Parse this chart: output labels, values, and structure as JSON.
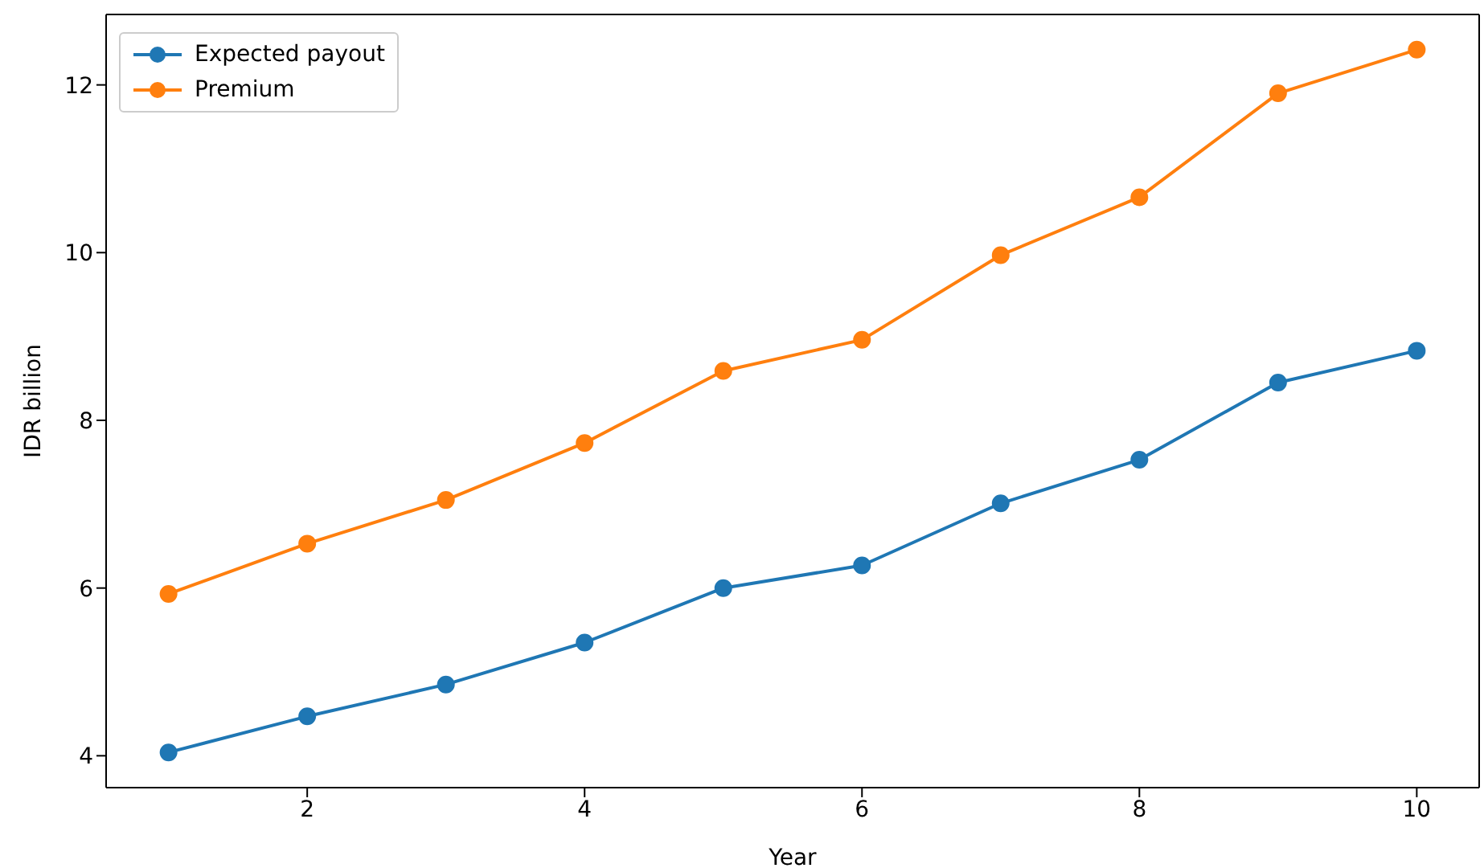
{
  "chart_data": {
    "type": "line",
    "xlabel": "Year",
    "ylabel": "IDR billion",
    "x": [
      1,
      2,
      3,
      4,
      5,
      6,
      7,
      8,
      9,
      10
    ],
    "series": [
      {
        "name": "Expected payout",
        "color": "#1f77b4",
        "values": [
          4.04,
          4.47,
          4.85,
          5.35,
          6.0,
          6.27,
          7.01,
          7.53,
          8.45,
          8.83
        ]
      },
      {
        "name": "Premium",
        "color": "#ff7f0e",
        "values": [
          5.93,
          6.53,
          7.05,
          7.73,
          8.59,
          8.96,
          9.97,
          10.66,
          11.9,
          12.42
        ]
      }
    ],
    "xlim": [
      0.55,
      10.45
    ],
    "xticks": [
      2,
      4,
      6,
      8,
      10
    ],
    "ylim": [
      3.62,
      12.84
    ],
    "yticks": [
      4,
      6,
      8,
      10,
      12
    ],
    "marker": "circle",
    "line_style": "solid",
    "grid": false,
    "legend": "top left"
  }
}
